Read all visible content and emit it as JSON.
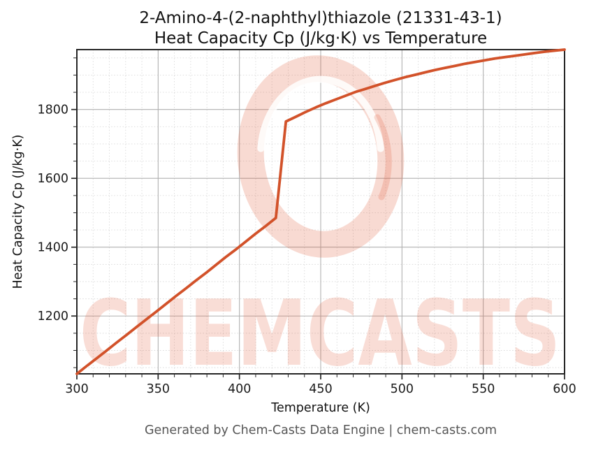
{
  "title_line1": "2-Amino-4-(2-naphthyl)thiazole (21331-43-1)",
  "title_line2": "Heat Capacity Cp (J/kg·K) vs Temperature",
  "footer": "Generated by Chem-Casts Data Engine | chem-casts.com",
  "watermark": {
    "text": "CHEMCASTS",
    "color": "#df5633",
    "opacity": 0.2
  },
  "colors": {
    "line": "#d2522a",
    "major_grid": "#b0b0b0",
    "minor_grid": "#d9d9d9",
    "axis": "#262626",
    "tick_label": "#1a1a1a",
    "footer_text": "#565656"
  },
  "chart_data": {
    "type": "line",
    "title": "2-Amino-4-(2-naphthyl)thiazole (21331-43-1) — Heat Capacity Cp (J/kg·K) vs Temperature",
    "xlabel": "Temperature (K)",
    "ylabel": "Heat Capacity Cp (J/kg·K)",
    "xlim": [
      300,
      600
    ],
    "ylim": [
      1032,
      1974
    ],
    "x_major_ticks": [
      300,
      350,
      400,
      450,
      500,
      550,
      600
    ],
    "x_minor_step": 10,
    "y_major_ticks": [
      1200,
      1400,
      1600,
      1800
    ],
    "y_minor_step": 50,
    "grid": true,
    "legend_position": "none",
    "series": [
      {
        "name": "Heat Capacity Cp",
        "x": [
          300.0,
          306.1,
          312.2,
          318.4,
          324.5,
          330.6,
          336.7,
          342.9,
          349.0,
          355.1,
          361.2,
          367.3,
          373.5,
          379.6,
          385.7,
          391.8,
          398.0,
          404.1,
          410.2,
          416.3,
          422.4,
          428.6,
          434.7,
          440.8,
          446.9,
          453.1,
          459.2,
          465.3,
          471.4,
          477.6,
          483.7,
          489.8,
          495.9,
          502.0,
          508.2,
          514.3,
          520.4,
          526.5,
          532.7,
          538.8,
          544.9,
          551.0,
          557.1,
          563.3,
          569.4,
          575.5,
          581.6,
          587.8,
          593.9,
          600.0
        ],
        "y": [
          1032,
          1055,
          1077,
          1100,
          1123,
          1145,
          1168,
          1191,
          1213,
          1236,
          1259,
          1281,
          1304,
          1326,
          1349,
          1372,
          1394,
          1417,
          1440,
          1462,
          1485,
          1765,
          1779,
          1793,
          1806,
          1818,
          1829,
          1840,
          1851,
          1860,
          1869,
          1878,
          1886,
          1894,
          1901,
          1908,
          1915,
          1921,
          1927,
          1933,
          1938,
          1943,
          1948,
          1952,
          1956,
          1960,
          1964,
          1968,
          1971,
          1974
        ]
      }
    ],
    "annotations": []
  }
}
